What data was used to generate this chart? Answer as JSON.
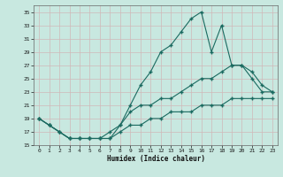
{
  "xlabel": "Humidex (Indice chaleur)",
  "background_color": "#c8e8e0",
  "grid_color": "#b0d0cc",
  "line_color": "#1a6a60",
  "x": [
    0,
    1,
    2,
    3,
    4,
    5,
    6,
    7,
    8,
    9,
    10,
    11,
    12,
    13,
    14,
    15,
    16,
    17,
    18,
    19,
    20,
    21,
    22,
    23
  ],
  "line1": [
    19,
    18,
    17,
    16,
    16,
    16,
    16,
    17,
    18,
    21,
    24,
    26,
    29,
    30,
    32,
    34,
    35,
    29,
    33,
    27,
    27,
    25,
    23,
    23
  ],
  "line2": [
    19,
    18,
    17,
    16,
    16,
    16,
    16,
    16,
    18,
    20,
    21,
    21,
    22,
    22,
    23,
    24,
    25,
    25,
    26,
    27,
    27,
    26,
    24,
    23
  ],
  "line3": [
    19,
    18,
    17,
    16,
    16,
    16,
    16,
    16,
    17,
    18,
    18,
    19,
    19,
    20,
    20,
    20,
    21,
    21,
    21,
    22,
    22,
    22,
    22,
    22
  ],
  "ylim": [
    15,
    36
  ],
  "yticks": [
    15,
    17,
    19,
    21,
    23,
    25,
    27,
    29,
    31,
    33,
    35
  ],
  "xlim": [
    -0.5,
    23.5
  ],
  "xticks": [
    0,
    1,
    2,
    3,
    4,
    5,
    6,
    7,
    8,
    9,
    10,
    11,
    12,
    13,
    14,
    15,
    16,
    17,
    18,
    19,
    20,
    21,
    22,
    23
  ]
}
